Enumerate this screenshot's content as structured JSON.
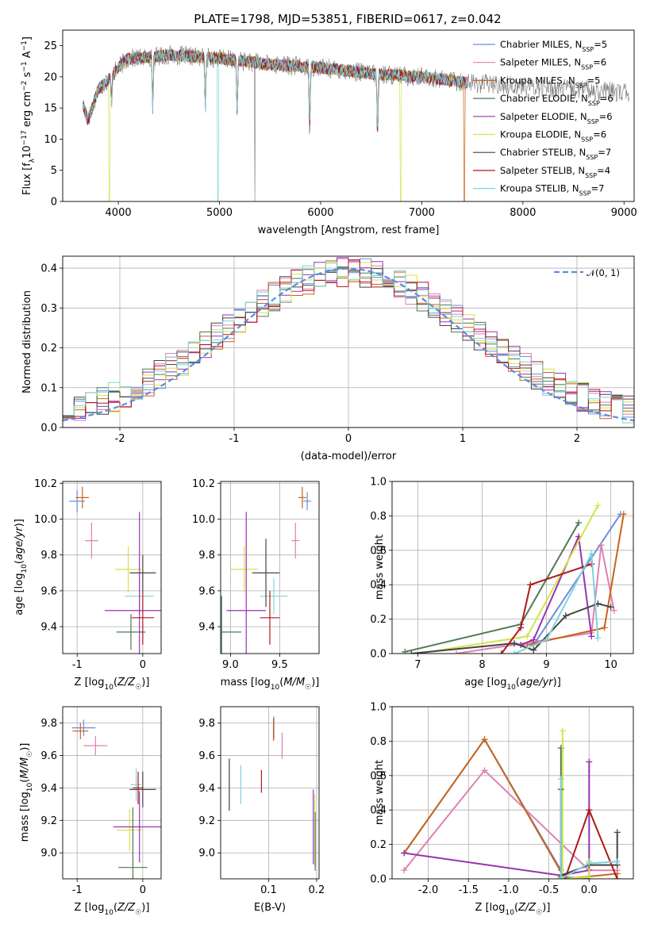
{
  "title": "PLATE=1798, MJD=53851, FIBERID=0617, z=0.042",
  "colors": {
    "Chabrier MILES": "#6b8fd6",
    "Salpeter MILES": "#e080b0",
    "Kroupa MILES": "#c8651a",
    "Chabrier ELODIE": "#4e7a56",
    "Salpeter ELODIE": "#9a32b0",
    "Kroupa ELODIE": "#d4e34a",
    "Chabrier STELIB": "#444444",
    "Salpeter STELIB": "#b01818",
    "Kroupa STELIB": "#7fd3dc"
  },
  "legend_entries": [
    "Chabrier MILES, N_SSP=5",
    "Salpeter MILES, N_SSP=6",
    "Kroupa MILES, N_SSP=5",
    "Chabrier ELODIE, N_SSP=6",
    "Salpeter ELODIE, N_SSP=6",
    "Kroupa ELODIE, N_SSP=6",
    "Chabrier STELIB, N_SSP=7",
    "Salpeter STELIB, N_SSP=4",
    "Kroupa STELIB, N_SSP=7"
  ],
  "chart_data": [
    {
      "id": "spectrum",
      "type": "line",
      "xlabel": "wavelength [Angstrom, rest frame]",
      "ylabel": "Flux [f_λ 10^-17 erg cm^-2 s^-1 A^-1]",
      "xlim": [
        3450,
        9100
      ],
      "ylim": [
        0,
        27.5
      ],
      "xticks": [
        4000,
        5000,
        6000,
        7000,
        8000,
        9000
      ],
      "yticks": [
        0,
        5,
        10,
        15,
        20,
        25
      ],
      "x_range_models": [
        3650,
        7450
      ],
      "x_range_data": [
        3650,
        9050
      ],
      "continuum": [
        [
          3650,
          15.5
        ],
        [
          3700,
          13.0
        ],
        [
          3800,
          18.0
        ],
        [
          3900,
          19.5
        ],
        [
          4000,
          21.5
        ],
        [
          4100,
          23.0
        ],
        [
          4200,
          23.0
        ],
        [
          4500,
          23.5
        ],
        [
          5000,
          23.0
        ],
        [
          5500,
          22.0
        ],
        [
          6000,
          21.5
        ],
        [
          6500,
          20.5
        ],
        [
          7000,
          20.0
        ],
        [
          7500,
          19.0
        ],
        [
          8000,
          18.5
        ],
        [
          8500,
          18.0
        ],
        [
          9000,
          17.5
        ]
      ],
      "dips": [
        [
          3933,
          4
        ],
        [
          4340,
          8
        ],
        [
          4861,
          8
        ],
        [
          5175,
          8
        ],
        [
          5892,
          10
        ],
        [
          6563,
          10
        ]
      ],
      "spikes_to_zero": [
        [
          3910,
          "Kroupa ELODIE"
        ],
        [
          4985,
          "Kroupa STELIB"
        ],
        [
          5350,
          "data"
        ],
        [
          6790,
          "Kroupa ELODIE"
        ],
        [
          7420,
          "Kroupa MILES"
        ]
      ],
      "grid": false,
      "legend_position": "upper right"
    },
    {
      "id": "residual-hist",
      "type": "histogram",
      "xlabel": "(data-model)/error",
      "ylabel": "Normed distribution",
      "xlim": [
        -2.5,
        2.5
      ],
      "ylim": [
        0,
        0.43
      ],
      "xticks": [
        -2,
        -1,
        0,
        1,
        2
      ],
      "yticks": [
        0,
        0.1,
        0.2,
        0.3,
        0.4
      ],
      "bin_width": 0.1,
      "bin_start": -2.5,
      "reference_curve": "N(0,1)",
      "reference_label": "𝒩(0, 1)",
      "grid": true,
      "legend_position": "upper right"
    },
    {
      "id": "age-vs-Z",
      "type": "errorbar",
      "xlabel": "Z [log10(Z/Z☉)]",
      "ylabel": "age [log10(age/yr)]",
      "xlim": [
        -1.22,
        0.28
      ],
      "ylim": [
        9.25,
        10.21
      ],
      "xticks": [
        -1,
        0
      ],
      "yticks": [
        9.4,
        9.6,
        9.8,
        10.0,
        10.2
      ],
      "series": [
        {
          "name": "Chabrier MILES",
          "x": -1.0,
          "xerr": 0.12,
          "y": 10.1,
          "yerr": 0.06
        },
        {
          "name": "Kroupa MILES",
          "x": -0.92,
          "xerr": 0.1,
          "y": 10.12,
          "yerr": 0.06
        },
        {
          "name": "Salpeter MILES",
          "x": -0.78,
          "xerr": 0.1,
          "y": 9.88,
          "yerr": 0.1
        },
        {
          "name": "Kroupa ELODIE",
          "x": -0.22,
          "xerr": 0.2,
          "y": 9.72,
          "yerr": 0.13
        },
        {
          "name": "Kroupa STELIB",
          "x": -0.05,
          "xerr": 0.22,
          "y": 9.57,
          "yerr": 0.1
        },
        {
          "name": "Chabrier ELODIE",
          "x": -0.18,
          "xerr": 0.22,
          "y": 9.37,
          "yerr": 0.1
        },
        {
          "name": "Salpeter ELODIE",
          "x": -0.05,
          "xerr": 0.53,
          "y": 9.49,
          "yerr": 0.55
        },
        {
          "name": "Chabrier STELIB",
          "x": 0.0,
          "xerr": 0.2,
          "y": 9.7,
          "yerr": 0.1
        },
        {
          "name": "Salpeter STELIB",
          "x": 0.0,
          "xerr": 0.17,
          "y": 9.45,
          "yerr": 0.15
        }
      ],
      "grid": true
    },
    {
      "id": "age-vs-mass",
      "type": "errorbar",
      "xlabel": "mass [log10(M/M☉)]",
      "ylabel": "",
      "xlim": [
        8.9,
        9.9
      ],
      "ylim": [
        9.25,
        10.21
      ],
      "xticks": [
        9.0,
        9.5
      ],
      "yticks": [
        9.4,
        9.6,
        9.8,
        10.0,
        10.2
      ],
      "series": [
        {
          "name": "Chabrier MILES",
          "x": 9.78,
          "xerr": 0.04,
          "y": 10.1,
          "yerr": 0.05
        },
        {
          "name": "Kroupa MILES",
          "x": 9.73,
          "xerr": 0.04,
          "y": 10.12,
          "yerr": 0.06
        },
        {
          "name": "Salpeter MILES",
          "x": 9.66,
          "xerr": 0.04,
          "y": 9.88,
          "yerr": 0.1
        },
        {
          "name": "Kroupa ELODIE",
          "x": 9.14,
          "xerr": 0.14,
          "y": 9.72,
          "yerr": 0.13
        },
        {
          "name": "Kroupa STELIB",
          "x": 9.44,
          "xerr": 0.14,
          "y": 9.57,
          "yerr": 0.1
        },
        {
          "name": "Chabrier ELODIE",
          "x": 8.91,
          "xerr": 0.2,
          "y": 9.37,
          "yerr": 0.2
        },
        {
          "name": "Salpeter ELODIE",
          "x": 9.16,
          "xerr": 0.2,
          "y": 9.49,
          "yerr": 0.55
        },
        {
          "name": "Chabrier STELIB",
          "x": 9.36,
          "xerr": 0.14,
          "y": 9.7,
          "yerr": 0.19
        },
        {
          "name": "Salpeter STELIB",
          "x": 9.4,
          "xerr": 0.1,
          "y": 9.45,
          "yerr": 0.15
        }
      ],
      "grid": true
    },
    {
      "id": "mass-weight-vs-age",
      "type": "line",
      "xlabel": "age [log10(age/yr)]",
      "ylabel": "mass weight",
      "xlim": [
        6.6,
        10.35
      ],
      "ylim": [
        0,
        1.0
      ],
      "xticks": [
        7,
        8,
        9,
        10
      ],
      "yticks": [
        0.0,
        0.2,
        0.4,
        0.6,
        0.8,
        1.0
      ],
      "series": [
        {
          "name": "Chabrier MILES",
          "x": [
            8.8,
            10.15
          ],
          "y": [
            0.05,
            0.81
          ]
        },
        {
          "name": "Salpeter MILES",
          "x": [
            7.6,
            9.7,
            9.85,
            10.05
          ],
          "y": [
            0.0,
            0.12,
            0.63,
            0.25
          ]
        },
        {
          "name": "Kroupa MILES",
          "x": [
            8.7,
            9.9,
            10.2
          ],
          "y": [
            0.05,
            0.15,
            0.81
          ]
        },
        {
          "name": "Chabrier ELODIE",
          "x": [
            6.8,
            8.6,
            9.5
          ],
          "y": [
            0.01,
            0.17,
            0.76
          ]
        },
        {
          "name": "Salpeter ELODIE",
          "x": [
            8.6,
            8.8,
            9.5,
            9.7
          ],
          "y": [
            0.05,
            0.08,
            0.68,
            0.1
          ]
        },
        {
          "name": "Kroupa ELODIE",
          "x": [
            7.0,
            8.7,
            9.8
          ],
          "y": [
            0.0,
            0.1,
            0.86
          ]
        },
        {
          "name": "Chabrier STELIB",
          "x": [
            6.9,
            8.5,
            8.8,
            9.3,
            9.8,
            10.0
          ],
          "y": [
            0.0,
            0.06,
            0.02,
            0.22,
            0.29,
            0.27
          ]
        },
        {
          "name": "Salpeter STELIB",
          "x": [
            8.3,
            8.6,
            8.75,
            9.7
          ],
          "y": [
            0.0,
            0.15,
            0.4,
            0.52
          ]
        },
        {
          "name": "Kroupa STELIB",
          "x": [
            8.5,
            9.0,
            9.7,
            9.8
          ],
          "y": [
            0.0,
            0.08,
            0.58,
            0.09
          ]
        }
      ],
      "grid": true
    },
    {
      "id": "mass-vs-Z",
      "type": "errorbar",
      "xlabel": "Z [log10(Z/Z☉)]",
      "ylabel": "mass [log10(M/M☉)]",
      "xlim": [
        -1.22,
        0.28
      ],
      "ylim": [
        8.84,
        9.9
      ],
      "xticks": [
        -1,
        0
      ],
      "yticks": [
        9.0,
        9.2,
        9.4,
        9.6,
        9.8
      ],
      "series": [
        {
          "name": "Chabrier MILES",
          "x": -0.9,
          "xerr": 0.18,
          "y": 9.77,
          "yerr": 0.05
        },
        {
          "name": "Kroupa MILES",
          "x": -0.95,
          "xerr": 0.12,
          "y": 9.75,
          "yerr": 0.05
        },
        {
          "name": "Salpeter MILES",
          "x": -0.72,
          "xerr": 0.18,
          "y": 9.66,
          "yerr": 0.06
        },
        {
          "name": "Kroupa ELODIE",
          "x": -0.2,
          "xerr": 0.2,
          "y": 9.14,
          "yerr": 0.13
        },
        {
          "name": "Kroupa STELIB",
          "x": -0.1,
          "xerr": 0.08,
          "y": 9.42,
          "yerr": 0.1
        },
        {
          "name": "Chabrier ELODIE",
          "x": -0.15,
          "xerr": 0.22,
          "y": 8.91,
          "yerr": 0.37
        },
        {
          "name": "Salpeter ELODIE",
          "x": -0.05,
          "xerr": 0.4,
          "y": 9.16,
          "yerr": 0.22
        },
        {
          "name": "Chabrier STELIB",
          "x": 0.0,
          "xerr": 0.2,
          "y": 9.39,
          "yerr": 0.11
        },
        {
          "name": "Salpeter STELIB",
          "x": -0.07,
          "xerr": 0.08,
          "y": 9.4,
          "yerr": 0.1
        }
      ],
      "grid": true
    },
    {
      "id": "mass-vs-EBV",
      "type": "errorbar",
      "xlabel": "E(B-V)",
      "ylabel": "",
      "xlim": [
        0.0,
        0.205
      ],
      "ylim": [
        8.84,
        9.9
      ],
      "xticks": [
        0.1,
        0.2
      ],
      "yticks": [
        9.0,
        9.2,
        9.4,
        9.6,
        9.8
      ],
      "series": [
        {
          "name": "Chabrier MILES",
          "x": 0.111,
          "y": 9.77,
          "yerr": 0.07
        },
        {
          "name": "Kroupa MILES",
          "x": 0.11,
          "y": 9.76,
          "yerr": 0.07
        },
        {
          "name": "Salpeter MILES",
          "x": 0.128,
          "y": 9.66,
          "yerr": 0.08
        },
        {
          "name": "Chabrier STELIB",
          "x": 0.018,
          "y": 9.42,
          "yerr": 0.16
        },
        {
          "name": "Kroupa STELIB",
          "x": 0.042,
          "y": 9.42,
          "yerr": 0.12
        },
        {
          "name": "Salpeter STELIB",
          "x": 0.085,
          "y": 9.44,
          "yerr": 0.07
        },
        {
          "name": "Kroupa ELODIE",
          "x": 0.196,
          "y": 9.14,
          "yerr": 0.22
        },
        {
          "name": "Salpeter ELODIE",
          "x": 0.193,
          "y": 9.16,
          "yerr": 0.23
        },
        {
          "name": "Chabrier ELODIE",
          "x": 0.197,
          "y": 9.07,
          "yerr": 0.18
        }
      ],
      "grid": true
    },
    {
      "id": "mass-weight-vs-Z",
      "type": "line",
      "xlabel": "Z [log10(Z/Z☉)]",
      "ylabel": "mass weight",
      "xlim": [
        -2.45,
        0.55
      ],
      "ylim": [
        0,
        1.0
      ],
      "xticks": [
        -2.0,
        -1.5,
        -1.0,
        -0.5,
        0.0
      ],
      "yticks": [
        0.0,
        0.2,
        0.4,
        0.6,
        0.8,
        1.0
      ],
      "series": [
        {
          "name": "Chabrier MILES",
          "x": [
            -2.3,
            -1.3,
            -0.35
          ],
          "y": [
            0.15,
            0.81,
            0.05
          ]
        },
        {
          "name": "Salpeter MILES",
          "x": [
            -2.3,
            -1.3,
            0.0,
            0.35
          ],
          "y": [
            0.05,
            0.63,
            0.05,
            0.05
          ]
        },
        {
          "name": "Kroupa MILES",
          "x": [
            -2.3,
            -1.3,
            -0.3,
            0.35
          ],
          "y": [
            0.15,
            0.81,
            0.0,
            0.03
          ]
        },
        {
          "name": "Chabrier ELODIE",
          "x": [
            -0.35,
            -0.35,
            0.0,
            0.0
          ],
          "y": [
            0.76,
            0.01,
            0.0,
            0.1
          ]
        },
        {
          "name": "Salpeter ELODIE",
          "x": [
            -2.3,
            -0.35,
            0.0,
            0.0
          ],
          "y": [
            0.15,
            0.02,
            0.05,
            0.68
          ]
        },
        {
          "name": "Kroupa ELODIE",
          "x": [
            -0.33,
            -0.33,
            0.0,
            0.0
          ],
          "y": [
            0.86,
            0.0,
            0.01,
            0.1
          ]
        },
        {
          "name": "Chabrier STELIB",
          "x": [
            -0.35,
            -0.35,
            0.0,
            0.35,
            0.35
          ],
          "y": [
            0.52,
            0.02,
            0.08,
            0.08,
            0.27
          ]
        },
        {
          "name": "Salpeter STELIB",
          "x": [
            -0.3,
            0.0,
            0.35
          ],
          "y": [
            0.0,
            0.4,
            0.0
          ]
        },
        {
          "name": "Kroupa STELIB",
          "x": [
            -0.35,
            -0.35,
            0.0,
            0.35
          ],
          "y": [
            0.58,
            0.0,
            0.09,
            0.1
          ]
        }
      ],
      "grid": true
    }
  ]
}
